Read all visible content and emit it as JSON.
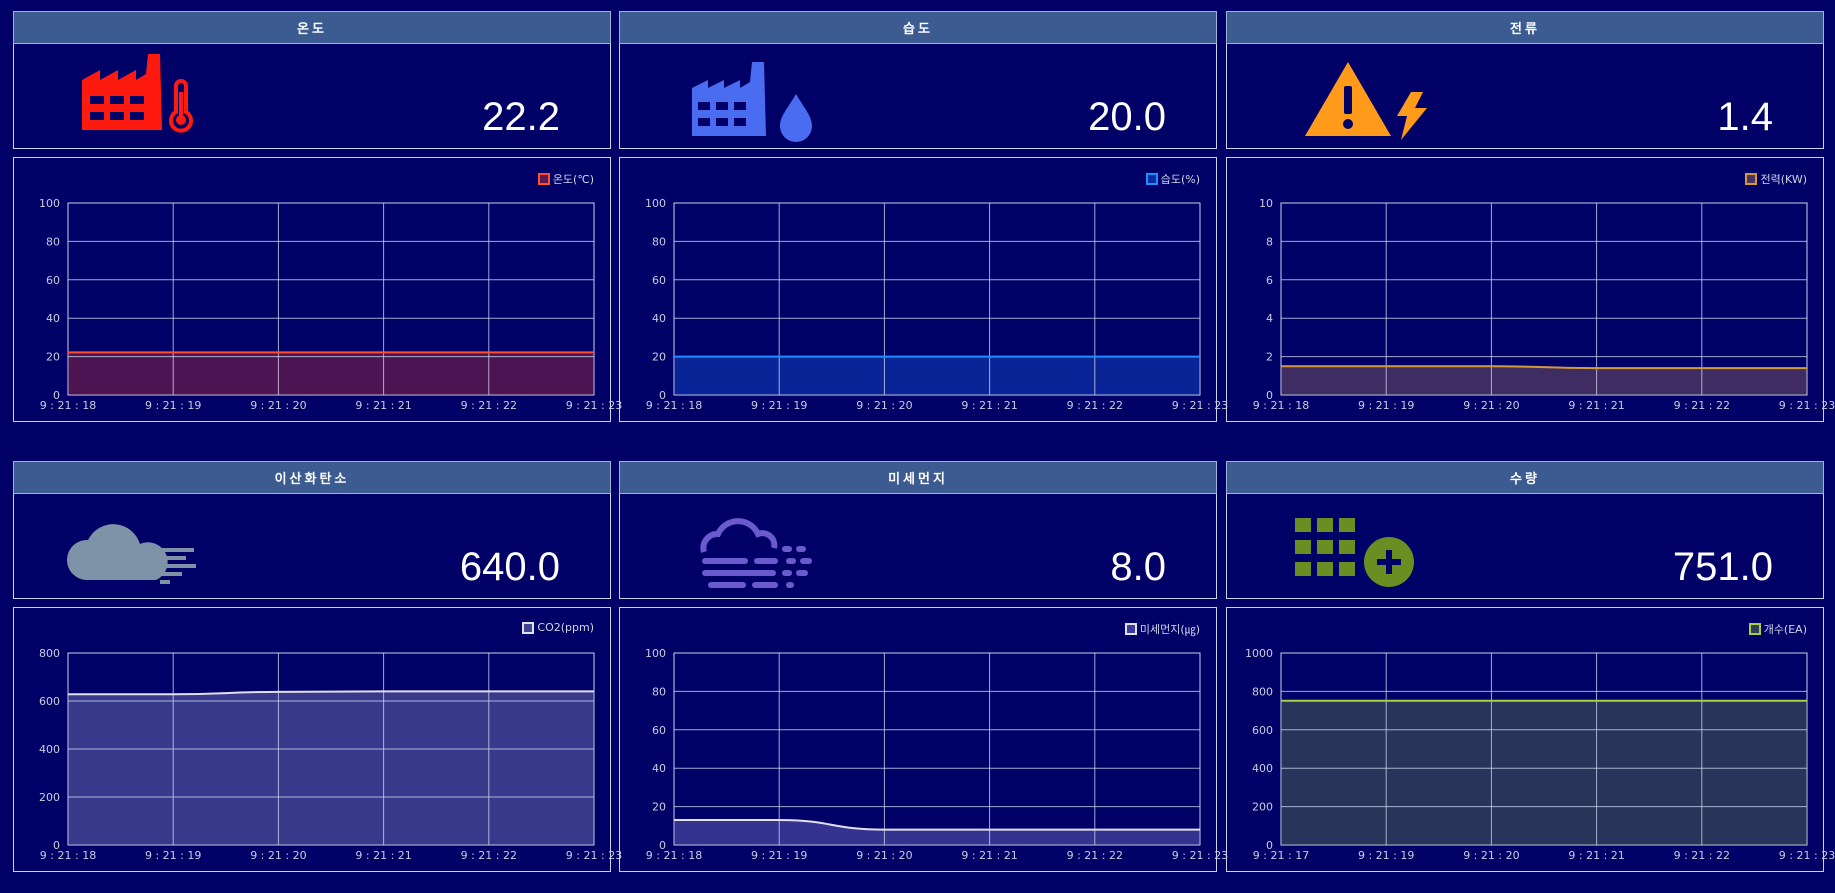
{
  "panels": [
    {
      "title": "온도",
      "value": "22.2",
      "icon": "factory-thermometer-icon",
      "color": "#ff3b30",
      "legend": "온도(℃)",
      "chart_data": {
        "type": "line",
        "x": [
          "9 : 21 : 18",
          "9 : 21 : 19",
          "9 : 21 : 20",
          "9 : 21 : 21",
          "9 : 21 : 22",
          "9 : 21 : 23"
        ],
        "series": [
          {
            "name": "온도(℃)",
            "values": [
              22.2,
              22.2,
              22.2,
              22.2,
              22.2,
              22.2
            ]
          }
        ],
        "yticks": [
          "0",
          "20",
          "40",
          "60",
          "80",
          "100"
        ],
        "ylim": [
          0,
          100
        ],
        "line_color": "#ff4f2f",
        "fill_color": "#5a1850"
      }
    },
    {
      "title": "습도",
      "value": "20.0",
      "icon": "factory-water-drop-icon",
      "color": "#4a6cf0",
      "legend": "습도(%)",
      "chart_data": {
        "type": "line",
        "x": [
          "9 : 21 : 18",
          "9 : 21 : 19",
          "9 : 21 : 20",
          "9 : 21 : 21",
          "9 : 21 : 22",
          "9 : 21 : 23"
        ],
        "series": [
          {
            "name": "습도(%)",
            "values": [
              20,
              20,
              20,
              20,
              20,
              20
            ]
          }
        ],
        "yticks": [
          "0",
          "20",
          "40",
          "60",
          "80",
          "100"
        ],
        "ylim": [
          0,
          100
        ],
        "line_color": "#1e8fff",
        "fill_color": "#0a2aa0"
      }
    },
    {
      "title": "전류",
      "value": "1.4",
      "icon": "warning-lightning-icon",
      "color": "#ff9a1a",
      "legend": "전력(KW)",
      "chart_data": {
        "type": "line",
        "x": [
          "9 : 21 : 18",
          "9 : 21 : 19",
          "9 : 21 : 20",
          "9 : 21 : 21",
          "9 : 21 : 22",
          "9 : 21 : 23"
        ],
        "series": [
          {
            "name": "전력(KW)",
            "values": [
              1.5,
              1.5,
              1.5,
              1.4,
              1.4,
              1.4
            ]
          }
        ],
        "yticks": [
          "0",
          "2",
          "4",
          "6",
          "8",
          "10"
        ],
        "ylim": [
          0,
          10
        ],
        "line_color": "#d39a3a",
        "fill_color": "#4a3462"
      }
    },
    {
      "title": "이산화탄소",
      "value": "640.0",
      "icon": "cloud-wind-icon",
      "color": "#7f93a8",
      "legend": "CO2(ppm)",
      "chart_data": {
        "type": "line",
        "x": [
          "9 : 21 : 18",
          "9 : 21 : 19",
          "9 : 21 : 20",
          "9 : 21 : 21",
          "9 : 21 : 22",
          "9 : 21 : 23"
        ],
        "series": [
          {
            "name": "CO2(ppm)",
            "values": [
              628,
              628,
              638,
              640,
              640,
              640
            ]
          }
        ],
        "yticks": [
          "0",
          "200",
          "400",
          "600",
          "800"
        ],
        "ylim": [
          0,
          800
        ],
        "line_color": "#e0e0ee",
        "fill_color": "#434393"
      }
    },
    {
      "title": "미세먼지",
      "value": "8.0",
      "icon": "smog-icon",
      "color": "#6a5acd",
      "legend": "미세먼지(㎍)",
      "chart_data": {
        "type": "line",
        "x": [
          "9 : 21 : 18",
          "9 : 21 : 19",
          "9 : 21 : 20",
          "9 : 21 : 21",
          "9 : 21 : 22",
          "9 : 21 : 23"
        ],
        "series": [
          {
            "name": "미세먼지(㎍)",
            "values": [
              13,
              13,
              8,
              8,
              8,
              8
            ]
          }
        ],
        "yticks": [
          "0",
          "20",
          "40",
          "60",
          "80",
          "100"
        ],
        "ylim": [
          0,
          100
        ],
        "line_color": "#e0e0ee",
        "fill_color": "#3e3c98"
      }
    },
    {
      "title": "수량",
      "value": "751.0",
      "icon": "grid-plus-icon",
      "color": "#6b8e23",
      "legend": "개수(EA)",
      "chart_data": {
        "type": "line",
        "x": [
          "9 : 21 : 17",
          "9 : 21 : 19",
          "9 : 21 : 20",
          "9 : 21 : 21",
          "9 : 21 : 22",
          "9 : 21 : 23"
        ],
        "series": [
          {
            "name": "개수(EA)",
            "values": [
              751,
              751,
              751,
              751,
              751,
              751
            ]
          }
        ],
        "yticks": [
          "0",
          "200",
          "400",
          "600",
          "800",
          "1000"
        ],
        "ylim": [
          0,
          1000
        ],
        "line_color": "#a8d040",
        "fill_color": "#2f3d58"
      }
    }
  ]
}
